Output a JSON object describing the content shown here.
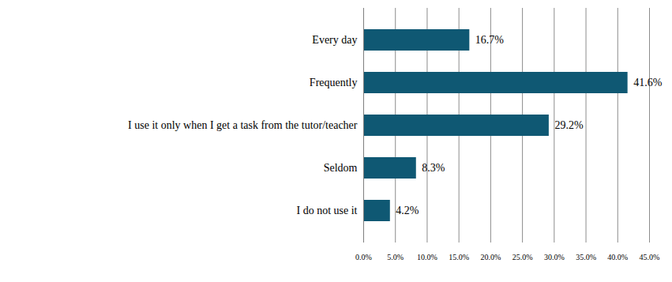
{
  "chart_data": {
    "type": "bar",
    "orientation": "horizontal",
    "categories": [
      "Every day",
      "Frequently",
      "I use it only when I get a task from the tutor/teacher",
      "Seldom",
      "I do not use it"
    ],
    "values": [
      16.7,
      41.6,
      29.2,
      8.3,
      4.2
    ],
    "value_labels": [
      "16.7%",
      "41.6%",
      "29.2%",
      "8.3%",
      "4.2%"
    ],
    "color": "#0f5873",
    "xlim": [
      0,
      45
    ],
    "xticks": [
      {
        "value": 0,
        "label": "0.0%"
      },
      {
        "value": 5,
        "label": "5.0%"
      },
      {
        "value": 10,
        "label": "10.0%"
      },
      {
        "value": 15,
        "label": "15.0%"
      },
      {
        "value": 20,
        "label": "20.0%"
      },
      {
        "value": 25,
        "label": "25.0%"
      },
      {
        "value": 30,
        "label": "30.0%"
      },
      {
        "value": 35,
        "label": "35.0%"
      },
      {
        "value": 40,
        "label": "40.0%"
      },
      {
        "value": 45,
        "label": "45.0%"
      }
    ],
    "grid": true,
    "data_labels": true
  }
}
